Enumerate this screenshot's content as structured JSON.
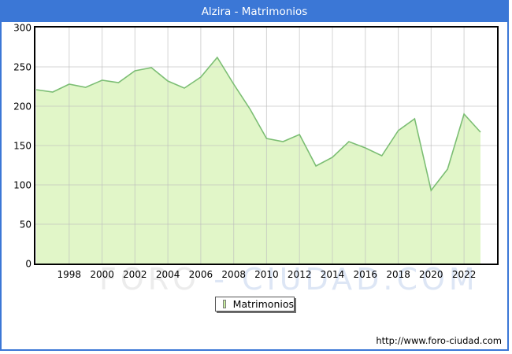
{
  "window": {
    "title": "Alzira - Matrimonios"
  },
  "legend": {
    "label": "Matrimonios"
  },
  "footer": {
    "url": "http://www.foro-ciudad.com"
  },
  "watermark": {
    "left": "FORO",
    "right": "- CIUDAD.COM"
  },
  "colors": {
    "frame": "#3b77d6",
    "title_bar": "#3b77d6",
    "area_fill": "#e1f6c8",
    "line": "#7cbe74",
    "grid": "#bdbdbd",
    "plot_border": "#000000",
    "legend_swatch": "#c9f09e"
  },
  "chart_data": {
    "type": "area",
    "title": "Alzira - Matrimonios",
    "xlabel": "",
    "ylabel": "",
    "x": [
      1996,
      1997,
      1998,
      1999,
      2000,
      2001,
      2002,
      2003,
      2004,
      2005,
      2006,
      2007,
      2008,
      2009,
      2010,
      2011,
      2012,
      2013,
      2014,
      2015,
      2016,
      2017,
      2018,
      2019,
      2020,
      2021,
      2022,
      2023
    ],
    "series": [
      {
        "name": "Matrimonios",
        "values": [
          221,
          218,
          228,
          224,
          233,
          230,
          245,
          249,
          232,
          223,
          237,
          262,
          228,
          196,
          159,
          155,
          164,
          124,
          135,
          155,
          147,
          137,
          169,
          184,
          93,
          120,
          190,
          167
        ]
      }
    ],
    "ylim": [
      0,
      300
    ],
    "yticks": [
      0,
      50,
      100,
      150,
      200,
      250,
      300
    ],
    "xticks": [
      1998,
      2000,
      2002,
      2004,
      2006,
      2008,
      2010,
      2012,
      2014,
      2016,
      2018,
      2020,
      2022
    ],
    "grid": true,
    "legend_position": "bottom-center"
  }
}
